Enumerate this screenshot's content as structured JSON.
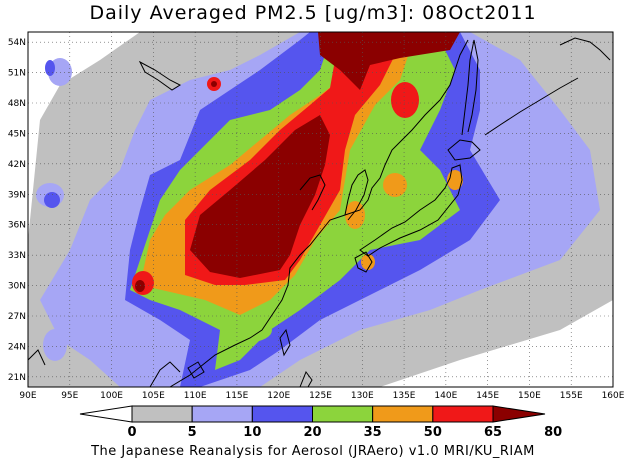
{
  "title": "Daily Averaged PM2.5 [ug/m3]: 08Oct2011",
  "footer": "The Japanese Reanalysis for Aerosol (JRAero) v1.0 MRI/KU_RIAM",
  "map": {
    "lon_range": [
      90,
      160
    ],
    "lat_range": [
      20,
      55
    ],
    "lon_ticks": [
      "90E",
      "95E",
      "100E",
      "105E",
      "110E",
      "115E",
      "120E",
      "125E",
      "130E",
      "135E",
      "140E",
      "145E",
      "150E",
      "155E",
      "160E"
    ],
    "lat_ticks": [
      "21N",
      "24N",
      "27N",
      "30N",
      "33N",
      "36N",
      "39N",
      "42N",
      "45N",
      "48N",
      "51N",
      "54N"
    ]
  },
  "colorbar": {
    "labels": [
      "0",
      "5",
      "10",
      "20",
      "35",
      "50",
      "65",
      "80"
    ],
    "colors": [
      "#ffffff",
      "#c0c0c0",
      "#a6a6f5",
      "#5555ee",
      "#8cd43c",
      "#f09a1a",
      "#f01818",
      "#8b0000"
    ]
  },
  "colors": {
    "c5": "#c0c0c0",
    "c10": "#a6a6f5",
    "c20": "#5555ee",
    "c35": "#8cd43c",
    "c50": "#f09a1a",
    "c65": "#f01818",
    "c80": "#8b0000",
    "coast": "#000000"
  }
}
